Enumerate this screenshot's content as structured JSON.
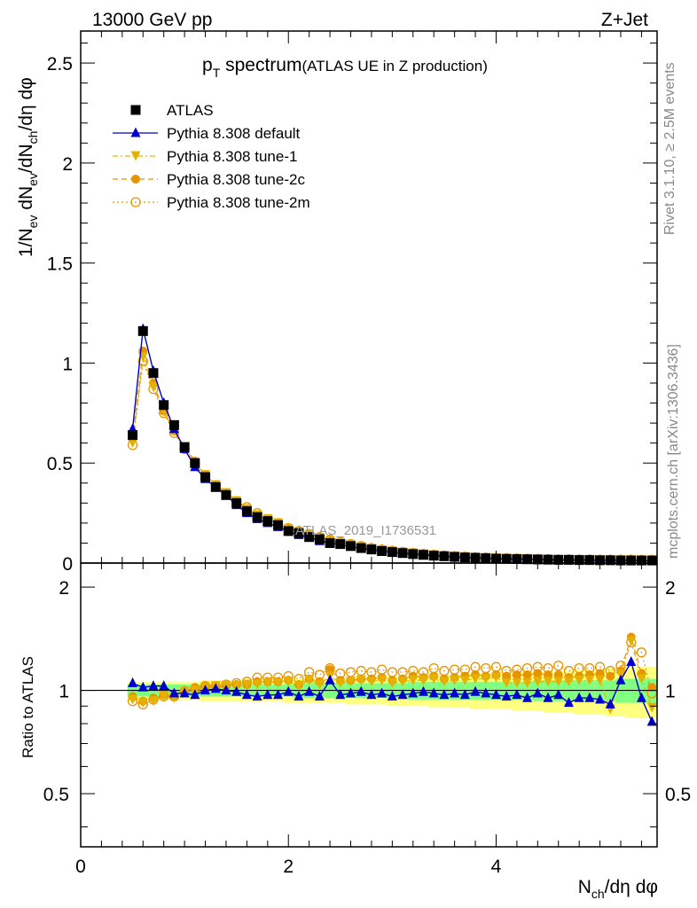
{
  "header": {
    "energy": "13000 GeV pp",
    "process": "Z+Jet"
  },
  "title": {
    "main": "p",
    "sub": "T",
    "rest": " spectrum",
    "paren": "(ATLAS UE in Z production)"
  },
  "watermark": "ATLAS_2019_I1736531",
  "side_labels": {
    "rivet": "Rivet 3.1.10, ≥ 2.5M events",
    "mcplots": "mcplots.cern.ch [arXiv:1306.3436]"
  },
  "axes": {
    "top_ylabel": "1/N_ev dN_ev/dN_ch/dη dφ",
    "bottom_ylabel": "Ratio to ATLAS",
    "xlabel": "N_ch/dη dφ",
    "top_yticks": [
      "0",
      "0.5",
      "1",
      "1.5",
      "2",
      "2.5"
    ],
    "bottom_yticks": [
      "0.5",
      "1",
      "2"
    ],
    "xticks": [
      "0",
      "2",
      "4"
    ]
  },
  "legend": [
    {
      "label": "ATLAS",
      "color": "#000000",
      "marker": "square",
      "line": "none"
    },
    {
      "label": "Pythia 8.308 default",
      "color": "#0000cc",
      "marker": "triangle-up",
      "line": "solid"
    },
    {
      "label": "Pythia 8.308 tune-1",
      "color": "#e6b000",
      "marker": "triangle-down",
      "line": "dashdot"
    },
    {
      "label": "Pythia 8.308 tune-2c",
      "color": "#e69500",
      "marker": "circle",
      "line": "dashed"
    },
    {
      "label": "Pythia 8.308 tune-2m",
      "color": "#e69500",
      "marker": "open-circle",
      "line": "dotted"
    }
  ],
  "colors": {
    "band_inner": "#80ff80",
    "band_outer": "#ffff80"
  },
  "chart_data": {
    "type": "scatter",
    "xlim": [
      0,
      5.55
    ],
    "top_ylim": [
      0,
      2.66
    ],
    "bottom_ylim": [
      0.35,
      2.35
    ],
    "bottom_scale": "log",
    "x": [
      0.5,
      0.6,
      0.7,
      0.8,
      0.9,
      1.0,
      1.1,
      1.2,
      1.3,
      1.4,
      1.5,
      1.6,
      1.7,
      1.8,
      1.9,
      2.0,
      2.1,
      2.2,
      2.3,
      2.4,
      2.5,
      2.6,
      2.7,
      2.8,
      2.9,
      3.0,
      3.1,
      3.2,
      3.3,
      3.4,
      3.5,
      3.6,
      3.7,
      3.8,
      3.9,
      4.0,
      4.1,
      4.2,
      4.3,
      4.4,
      4.5,
      4.6,
      4.7,
      4.8,
      4.9,
      5.0,
      5.1,
      5.2,
      5.3,
      5.4,
      5.5
    ],
    "series": [
      {
        "name": "ATLAS",
        "values": [
          0.64,
          1.16,
          0.95,
          0.79,
          0.69,
          0.58,
          0.5,
          0.43,
          0.38,
          0.34,
          0.3,
          0.26,
          0.23,
          0.21,
          0.19,
          0.16,
          0.15,
          0.13,
          0.12,
          0.1,
          0.095,
          0.085,
          0.075,
          0.068,
          0.06,
          0.055,
          0.05,
          0.045,
          0.041,
          0.037,
          0.034,
          0.031,
          0.028,
          0.026,
          0.024,
          0.022,
          0.021,
          0.02,
          0.019,
          0.018,
          0.017,
          0.016,
          0.016,
          0.015,
          0.015,
          0.014,
          0.014,
          0.013,
          0.013,
          0.013,
          0.013
        ]
      },
      {
        "name": "Pythia 8.308 default",
        "values": [
          0.67,
          1.17,
          0.96,
          0.8,
          0.67,
          0.57,
          0.48,
          0.42,
          0.38,
          0.34,
          0.29,
          0.25,
          0.22,
          0.2,
          0.18,
          0.16,
          0.14,
          0.13,
          0.11,
          0.1,
          0.092,
          0.082,
          0.073,
          0.066,
          0.058,
          0.053,
          0.048,
          0.044,
          0.04,
          0.036,
          0.033,
          0.03,
          0.027,
          0.025,
          0.023,
          0.021,
          0.02,
          0.019,
          0.018,
          0.017,
          0.016,
          0.015,
          0.015,
          0.014,
          0.014,
          0.013,
          0.013,
          0.013,
          0.013,
          0.012,
          0.011
        ]
      },
      {
        "name": "Pythia 8.308 tune-1",
        "values": [
          0.6,
          1.03,
          0.88,
          0.76,
          0.66,
          0.58,
          0.5,
          0.44,
          0.39,
          0.35,
          0.31,
          0.27,
          0.24,
          0.22,
          0.2,
          0.17,
          0.155,
          0.14,
          0.125,
          0.11,
          0.1,
          0.09,
          0.08,
          0.072,
          0.064,
          0.058,
          0.053,
          0.048,
          0.044,
          0.04,
          0.036,
          0.033,
          0.03,
          0.028,
          0.026,
          0.024,
          0.022,
          0.021,
          0.02,
          0.019,
          0.018,
          0.017,
          0.017,
          0.016,
          0.016,
          0.015,
          0.015,
          0.015,
          0.015,
          0.014,
          0.014
        ]
      },
      {
        "name": "Pythia 8.308 tune-2c",
        "values": [
          0.62,
          1.06,
          0.9,
          0.76,
          0.66,
          0.58,
          0.51,
          0.44,
          0.39,
          0.35,
          0.31,
          0.27,
          0.24,
          0.22,
          0.2,
          0.17,
          0.16,
          0.14,
          0.13,
          0.115,
          0.1,
          0.092,
          0.082,
          0.074,
          0.066,
          0.06,
          0.055,
          0.05,
          0.045,
          0.041,
          0.037,
          0.034,
          0.031,
          0.029,
          0.027,
          0.025,
          0.023,
          0.022,
          0.021,
          0.02,
          0.019,
          0.018,
          0.018,
          0.017,
          0.017,
          0.016,
          0.016,
          0.016,
          0.016,
          0.015,
          0.015
        ]
      },
      {
        "name": "Pythia 8.308 tune-2m",
        "values": [
          0.59,
          1.01,
          0.87,
          0.75,
          0.65,
          0.57,
          0.5,
          0.44,
          0.39,
          0.35,
          0.31,
          0.28,
          0.25,
          0.22,
          0.2,
          0.175,
          0.16,
          0.145,
          0.13,
          0.118,
          0.105,
          0.095,
          0.085,
          0.076,
          0.068,
          0.062,
          0.056,
          0.051,
          0.046,
          0.042,
          0.038,
          0.035,
          0.032,
          0.03,
          0.028,
          0.026,
          0.024,
          0.023,
          0.022,
          0.021,
          0.02,
          0.019,
          0.019,
          0.018,
          0.018,
          0.017,
          0.017,
          0.017,
          0.017,
          0.016,
          0.016
        ]
      }
    ],
    "ratios": [
      {
        "name": "Pythia 8.308 default",
        "values": [
          1.05,
          1.02,
          1.03,
          1.03,
          0.98,
          0.98,
          0.97,
          1.0,
          1.01,
          1.0,
          0.99,
          0.97,
          0.96,
          0.97,
          0.97,
          0.99,
          0.96,
          0.99,
          0.96,
          1.07,
          0.97,
          0.98,
          0.99,
          0.97,
          0.98,
          0.96,
          0.97,
          0.98,
          0.99,
          0.98,
          0.97,
          0.98,
          0.97,
          0.99,
          0.98,
          0.97,
          0.96,
          0.97,
          0.95,
          0.98,
          0.95,
          0.97,
          0.92,
          0.95,
          0.95,
          0.94,
          0.91,
          1.07,
          1.21,
          0.95,
          0.81
        ]
      },
      {
        "name": "Pythia 8.308 tune-1",
        "values": [
          0.94,
          0.92,
          0.93,
          0.96,
          0.95,
          0.99,
          1.0,
          1.02,
          1.03,
          1.03,
          1.03,
          1.04,
          1.04,
          1.05,
          1.05,
          1.06,
          1.03,
          1.07,
          1.04,
          1.1,
          1.05,
          1.06,
          1.07,
          1.06,
          1.07,
          1.05,
          1.06,
          1.07,
          1.07,
          1.08,
          1.06,
          1.07,
          1.07,
          1.08,
          1.08,
          1.09,
          1.05,
          1.05,
          1.05,
          1.06,
          1.06,
          1.06,
          1.06,
          1.07,
          1.07,
          1.07,
          0.88,
          1.11,
          1.39,
          1.08,
          0.89
        ]
      },
      {
        "name": "Pythia 8.308 tune-2c",
        "values": [
          0.96,
          0.93,
          0.95,
          0.97,
          0.96,
          1.0,
          1.02,
          1.03,
          1.02,
          1.03,
          1.04,
          1.04,
          1.06,
          1.06,
          1.06,
          1.07,
          1.04,
          1.08,
          1.06,
          1.15,
          1.07,
          1.07,
          1.08,
          1.08,
          1.09,
          1.07,
          1.08,
          1.1,
          1.09,
          1.1,
          1.08,
          1.09,
          1.1,
          1.11,
          1.1,
          1.11,
          1.1,
          1.11,
          1.11,
          1.12,
          1.11,
          1.11,
          1.09,
          1.1,
          1.11,
          1.12,
          1.1,
          1.14,
          1.43,
          1.12,
          1.02
        ]
      },
      {
        "name": "Pythia 8.308 tune-2m",
        "values": [
          0.93,
          0.91,
          0.94,
          0.96,
          0.96,
          0.99,
          1.01,
          1.03,
          1.03,
          1.04,
          1.05,
          1.06,
          1.09,
          1.09,
          1.09,
          1.1,
          1.08,
          1.13,
          1.11,
          1.16,
          1.12,
          1.13,
          1.14,
          1.13,
          1.15,
          1.13,
          1.13,
          1.14,
          1.13,
          1.16,
          1.14,
          1.15,
          1.15,
          1.17,
          1.16,
          1.17,
          1.14,
          1.15,
          1.16,
          1.17,
          1.16,
          1.18,
          1.14,
          1.16,
          1.16,
          1.17,
          1.14,
          1.18,
          1.38,
          1.29,
          0.98
        ]
      }
    ],
    "bands": {
      "inner": [
        0.04,
        0.04,
        0.04,
        0.04,
        0.04,
        0.04,
        0.04,
        0.04,
        0.04,
        0.04,
        0.04,
        0.04,
        0.04,
        0.04,
        0.04,
        0.04,
        0.05,
        0.05,
        0.05,
        0.05,
        0.05,
        0.05,
        0.05,
        0.05,
        0.05,
        0.05,
        0.05,
        0.06,
        0.06,
        0.06,
        0.06,
        0.06,
        0.06,
        0.06,
        0.06,
        0.06,
        0.06,
        0.06,
        0.06,
        0.07,
        0.07,
        0.07,
        0.07,
        0.07,
        0.07,
        0.07,
        0.07,
        0.08,
        0.08,
        0.08,
        0.08
      ],
      "outer": [
        0.06,
        0.06,
        0.06,
        0.06,
        0.06,
        0.06,
        0.06,
        0.07,
        0.07,
        0.07,
        0.07,
        0.07,
        0.07,
        0.07,
        0.07,
        0.08,
        0.08,
        0.08,
        0.08,
        0.08,
        0.08,
        0.09,
        0.09,
        0.09,
        0.09,
        0.1,
        0.1,
        0.1,
        0.1,
        0.11,
        0.11,
        0.11,
        0.11,
        0.12,
        0.12,
        0.12,
        0.12,
        0.13,
        0.13,
        0.13,
        0.14,
        0.14,
        0.14,
        0.15,
        0.15,
        0.15,
        0.16,
        0.16,
        0.17,
        0.17,
        0.17
      ]
    }
  }
}
